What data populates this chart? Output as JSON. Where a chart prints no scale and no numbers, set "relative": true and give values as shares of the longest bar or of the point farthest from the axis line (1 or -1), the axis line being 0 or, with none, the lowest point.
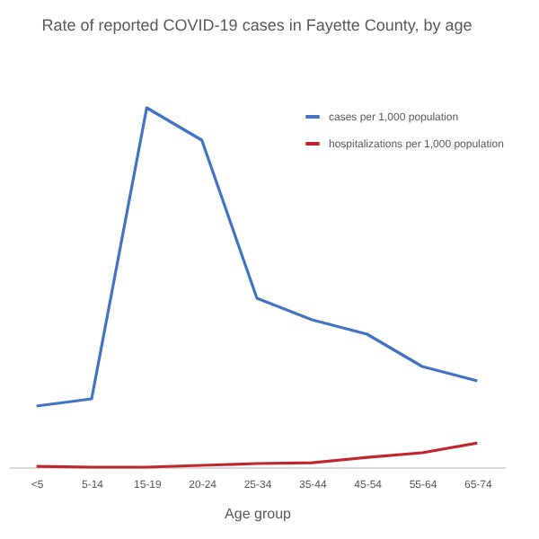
{
  "chart_data": {
    "type": "line",
    "title": "Rate of reported COVID-19 cases in Fayette County, by age",
    "xlabel": "Age group",
    "relative": true,
    "categories": [
      "<5",
      "5-14",
      "15-19",
      "20-24",
      "25-34",
      "35-44",
      "45-54",
      "55-64",
      "65-74"
    ],
    "series": [
      {
        "name": "cases per 1,000 population",
        "color": "#4472c4",
        "values": [
          0.17,
          0.19,
          1,
          0.91,
          0.47,
          0.41,
          0.37,
          0.28,
          0.24
        ]
      },
      {
        "name": "hospitalizations per 1,000 population",
        "color": "#c0272d",
        "values": [
          0.002,
          0,
          0,
          0.005,
          0.01,
          0.012,
          0.027,
          0.04,
          0.067
        ]
      }
    ],
    "legend": "top right",
    "grid": false,
    "marker": "none",
    "line_style": "solid"
  }
}
